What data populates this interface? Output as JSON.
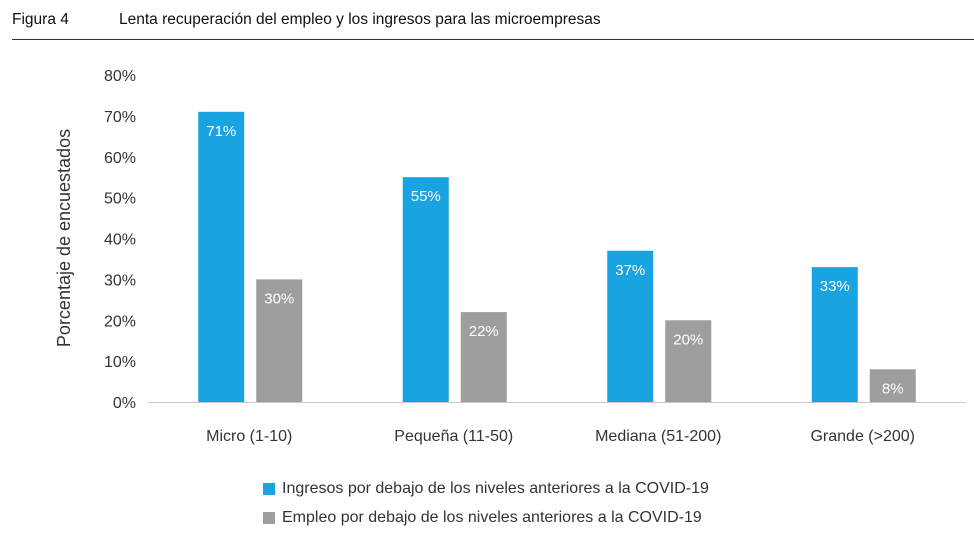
{
  "figure": {
    "number": "Figura 4",
    "title": "Lenta recuperación del empleo y los ingresos para las microempresas"
  },
  "chart_data": {
    "type": "bar",
    "categories": [
      "Micro (1-10)",
      "Pequeña (11-50)",
      "Mediana (51-200)",
      "Grande (>200)"
    ],
    "series": [
      {
        "name": "Ingresos por debajo de los niveles anteriores a la COVID-19",
        "values": [
          71,
          55,
          37,
          33
        ],
        "color": "#1aa3e1"
      },
      {
        "name": "Empleo por debajo de los niveles anteriores a la COVID-19",
        "values": [
          30,
          22,
          20,
          8
        ],
        "color": "#9e9e9e"
      }
    ],
    "ylabel": "Porcentaje de encuestados",
    "xlabel": "",
    "ylim": [
      0,
      80
    ],
    "yticks": [
      0,
      10,
      20,
      30,
      40,
      50,
      60,
      70,
      80
    ],
    "tick_format": "{v}%",
    "data_labels": [
      "71%",
      "55%",
      "37%",
      "33%",
      "30%",
      "22%",
      "20%",
      "8%"
    ],
    "ytick_labels": [
      "0%",
      "10%",
      "20%",
      "30%",
      "40%",
      "50%",
      "60%",
      "70%",
      "80%"
    ],
    "grid": false,
    "legend": "bottom"
  }
}
